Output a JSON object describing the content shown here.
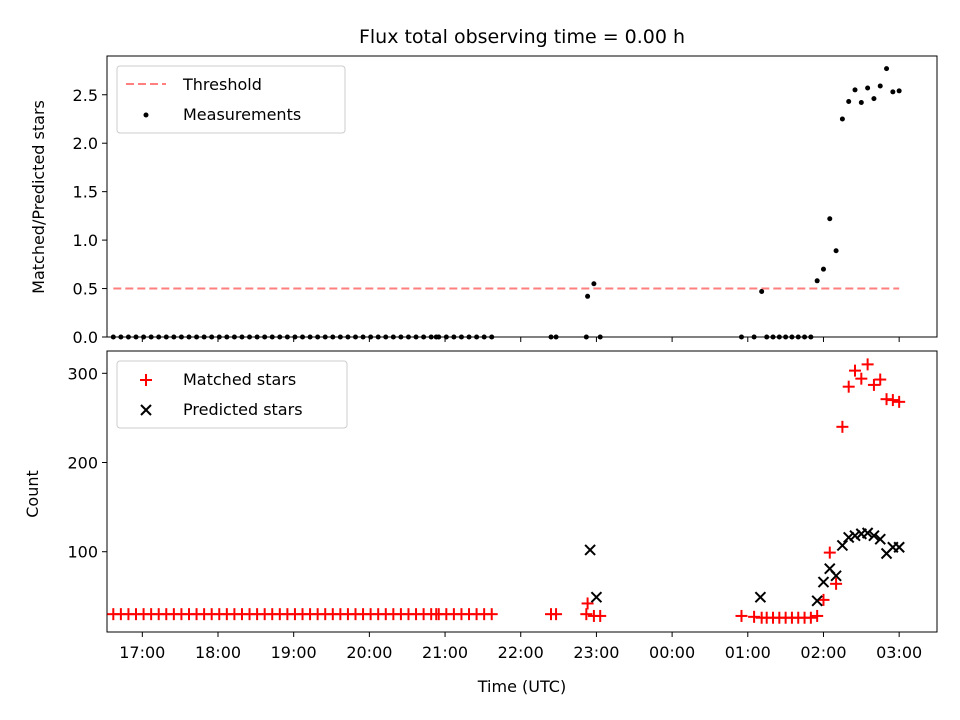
{
  "chart_data": [
    {
      "type": "scatter",
      "title": "Flux total observing time = 0.00 h",
      "ylabel": "Matched/Predicted stars",
      "xlabel": "",
      "xlim": [
        "16:32",
        "03:30"
      ],
      "ylim": [
        0,
        2.9
      ],
      "yticks": [
        "0.0",
        "0.5",
        "1.0",
        "1.5",
        "2.0",
        "2.5"
      ],
      "legend_position": "top-left",
      "threshold": {
        "name": "Threshold",
        "color": "#ff7f7f",
        "y": 0.5,
        "x_start": "16:37",
        "x_end": "03:00"
      },
      "series": [
        {
          "name": "Measurements",
          "color": "#000000",
          "points": [
            [
              "16:37",
              0
            ],
            [
              "16:43",
              0
            ],
            [
              "16:49",
              0
            ],
            [
              "16:55",
              0
            ],
            [
              "17:01",
              0
            ],
            [
              "17:07",
              0
            ],
            [
              "17:13",
              0
            ],
            [
              "17:19",
              0
            ],
            [
              "17:25",
              0
            ],
            [
              "17:31",
              0
            ],
            [
              "17:37",
              0
            ],
            [
              "17:43",
              0
            ],
            [
              "17:49",
              0
            ],
            [
              "17:55",
              0
            ],
            [
              "18:01",
              0
            ],
            [
              "18:07",
              0
            ],
            [
              "18:13",
              0
            ],
            [
              "18:19",
              0
            ],
            [
              "18:25",
              0
            ],
            [
              "18:31",
              0
            ],
            [
              "18:37",
              0
            ],
            [
              "18:43",
              0
            ],
            [
              "18:49",
              0
            ],
            [
              "18:55",
              0
            ],
            [
              "19:01",
              0
            ],
            [
              "19:07",
              0
            ],
            [
              "19:13",
              0
            ],
            [
              "19:19",
              0
            ],
            [
              "19:25",
              0
            ],
            [
              "19:31",
              0
            ],
            [
              "19:37",
              0
            ],
            [
              "19:43",
              0
            ],
            [
              "19:49",
              0
            ],
            [
              "19:55",
              0
            ],
            [
              "20:01",
              0
            ],
            [
              "20:07",
              0
            ],
            [
              "20:13",
              0
            ],
            [
              "20:19",
              0
            ],
            [
              "20:25",
              0
            ],
            [
              "20:31",
              0
            ],
            [
              "20:37",
              0
            ],
            [
              "20:43",
              0
            ],
            [
              "20:49",
              0
            ],
            [
              "20:53",
              0
            ],
            [
              "20:55",
              0
            ],
            [
              "21:01",
              0
            ],
            [
              "21:07",
              0
            ],
            [
              "21:13",
              0
            ],
            [
              "21:19",
              0
            ],
            [
              "21:25",
              0
            ],
            [
              "21:31",
              0
            ],
            [
              "21:37",
              0
            ],
            [
              "22:24",
              0
            ],
            [
              "22:28",
              0
            ],
            [
              "22:52",
              0
            ],
            [
              "22:53",
              0.42
            ],
            [
              "22:58",
              0.55
            ],
            [
              "23:03",
              0
            ],
            [
              "00:55",
              0
            ],
            [
              "01:05",
              0
            ],
            [
              "01:11",
              0.47
            ],
            [
              "01:15",
              0
            ],
            [
              "01:20",
              0
            ],
            [
              "01:25",
              0
            ],
            [
              "01:30",
              0
            ],
            [
              "01:35",
              0
            ],
            [
              "01:40",
              0
            ],
            [
              "01:45",
              0
            ],
            [
              "01:50",
              0
            ],
            [
              "01:55",
              0.58
            ],
            [
              "02:00",
              0.7
            ],
            [
              "02:05",
              1.22
            ],
            [
              "02:10",
              0.89
            ],
            [
              "02:15",
              2.25
            ],
            [
              "02:20",
              2.43
            ],
            [
              "02:25",
              2.55
            ],
            [
              "02:30",
              2.42
            ],
            [
              "02:35",
              2.57
            ],
            [
              "02:40",
              2.46
            ],
            [
              "02:45",
              2.59
            ],
            [
              "02:50",
              2.77
            ],
            [
              "02:55",
              2.53
            ],
            [
              "03:00",
              2.54
            ]
          ]
        }
      ]
    },
    {
      "type": "scatter",
      "title": "",
      "ylabel": "Count",
      "xlabel": "Time (UTC)",
      "xlim": [
        "16:32",
        "03:30"
      ],
      "ylim": [
        10,
        325
      ],
      "yticks": [
        "100",
        "200",
        "300"
      ],
      "xticks": [
        "17:00",
        "18:00",
        "19:00",
        "20:00",
        "21:00",
        "22:00",
        "23:00",
        "00:00",
        "01:00",
        "02:00",
        "03:00"
      ],
      "legend_position": "top-left",
      "series": [
        {
          "name": "Matched stars",
          "marker": "plus",
          "color": "#ff0000",
          "points": [
            [
              "16:37",
              30
            ],
            [
              "16:43",
              30
            ],
            [
              "16:49",
              30
            ],
            [
              "16:55",
              30
            ],
            [
              "17:01",
              30
            ],
            [
              "17:07",
              30
            ],
            [
              "17:13",
              30
            ],
            [
              "17:19",
              30
            ],
            [
              "17:25",
              30
            ],
            [
              "17:31",
              30
            ],
            [
              "17:37",
              30
            ],
            [
              "17:43",
              30
            ],
            [
              "17:49",
              30
            ],
            [
              "17:55",
              30
            ],
            [
              "18:01",
              30
            ],
            [
              "18:07",
              30
            ],
            [
              "18:13",
              30
            ],
            [
              "18:19",
              30
            ],
            [
              "18:25",
              30
            ],
            [
              "18:31",
              30
            ],
            [
              "18:37",
              30
            ],
            [
              "18:43",
              30
            ],
            [
              "18:49",
              30
            ],
            [
              "18:55",
              30
            ],
            [
              "19:01",
              30
            ],
            [
              "19:07",
              30
            ],
            [
              "19:13",
              30
            ],
            [
              "19:19",
              30
            ],
            [
              "19:25",
              30
            ],
            [
              "19:31",
              30
            ],
            [
              "19:37",
              30
            ],
            [
              "19:43",
              30
            ],
            [
              "19:49",
              30
            ],
            [
              "19:55",
              30
            ],
            [
              "20:01",
              30
            ],
            [
              "20:07",
              30
            ],
            [
              "20:13",
              30
            ],
            [
              "20:19",
              30
            ],
            [
              "20:25",
              30
            ],
            [
              "20:31",
              30
            ],
            [
              "20:37",
              30
            ],
            [
              "20:43",
              30
            ],
            [
              "20:49",
              30
            ],
            [
              "20:53",
              30
            ],
            [
              "20:55",
              30
            ],
            [
              "21:01",
              30
            ],
            [
              "21:07",
              30
            ],
            [
              "21:13",
              30
            ],
            [
              "21:19",
              30
            ],
            [
              "21:25",
              30
            ],
            [
              "21:31",
              30
            ],
            [
              "21:37",
              30
            ],
            [
              "22:24",
              30
            ],
            [
              "22:28",
              30
            ],
            [
              "22:52",
              30
            ],
            [
              "22:53",
              42
            ],
            [
              "22:58",
              28
            ],
            [
              "23:03",
              28
            ],
            [
              "00:55",
              28
            ],
            [
              "01:05",
              27
            ],
            [
              "01:11",
              26
            ],
            [
              "01:15",
              26
            ],
            [
              "01:20",
              26
            ],
            [
              "01:25",
              26
            ],
            [
              "01:30",
              26
            ],
            [
              "01:35",
              26
            ],
            [
              "01:40",
              26
            ],
            [
              "01:45",
              26
            ],
            [
              "01:50",
              26
            ],
            [
              "01:55",
              28
            ],
            [
              "02:00",
              46
            ],
            [
              "02:05",
              99
            ],
            [
              "02:10",
              64
            ],
            [
              "02:15",
              240
            ],
            [
              "02:20",
              285
            ],
            [
              "02:25",
              303
            ],
            [
              "02:30",
              294
            ],
            [
              "02:35",
              310
            ],
            [
              "02:40",
              287
            ],
            [
              "02:45",
              293
            ],
            [
              "02:50",
              271
            ],
            [
              "02:55",
              270
            ],
            [
              "03:00",
              268
            ]
          ]
        },
        {
          "name": "Predicted stars",
          "marker": "x",
          "color": "#000000",
          "points": [
            [
              "22:55",
              102
            ],
            [
              "23:00",
              49
            ],
            [
              "01:10",
              49
            ],
            [
              "01:55",
              45
            ],
            [
              "02:00",
              66
            ],
            [
              "02:05",
              81
            ],
            [
              "02:10",
              73
            ],
            [
              "02:15",
              107
            ],
            [
              "02:20",
              116
            ],
            [
              "02:25",
              118
            ],
            [
              "02:30",
              120
            ],
            [
              "02:35",
              121
            ],
            [
              "02:40",
              118
            ],
            [
              "02:45",
              114
            ],
            [
              "02:50",
              98
            ],
            [
              "02:55",
              105
            ],
            [
              "03:00",
              105
            ]
          ]
        }
      ]
    }
  ]
}
